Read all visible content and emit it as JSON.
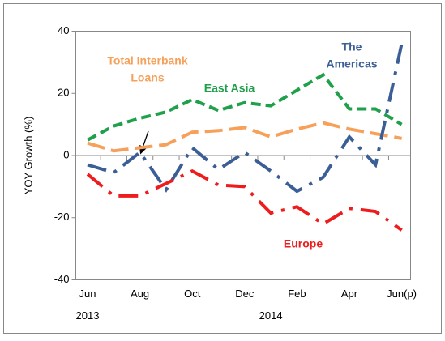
{
  "chart_data": {
    "type": "line",
    "y_label": "YOY Growth (%)",
    "categories": [
      "Jun",
      null,
      "Aug",
      null,
      "Oct",
      null,
      "Dec",
      null,
      "Feb",
      null,
      "Apr",
      null,
      "Jun(p)"
    ],
    "year_labels": [
      "2013",
      "2014"
    ],
    "ylim": [
      -40,
      40
    ],
    "yticks": [
      -40,
      -20,
      0,
      20,
      40
    ],
    "grid": false,
    "series": [
      {
        "name": "East Asia",
        "color": "#1fa04a",
        "values": [
          5,
          9.5,
          12,
          14,
          18,
          14.5,
          17,
          16,
          21,
          26,
          15,
          15,
          10
        ]
      },
      {
        "name": "Total Interbank Loans",
        "color": "#f6a05a",
        "values": [
          4,
          1.5,
          2.5,
          3.5,
          7.5,
          8,
          9,
          6,
          8.5,
          10.5,
          8.5,
          7,
          5.5
        ]
      },
      {
        "name": "The Americas",
        "color": "#3b5e96",
        "values": [
          -3,
          -5.5,
          1,
          -11,
          2.5,
          -4.5,
          1,
          -5,
          -11.5,
          -7,
          6,
          -3,
          36
        ]
      },
      {
        "name": "Europe",
        "color": "#ee1c1c",
        "values": [
          -6,
          -13,
          -13,
          -9,
          -5,
          -9.5,
          -10,
          -18.5,
          -16.5,
          -22,
          -17,
          -18,
          -24
        ]
      }
    ],
    "annotations": [
      {
        "lines": [
          "Total Interbank",
          "Loans"
        ],
        "series": 1
      },
      {
        "lines": [
          "East Asia"
        ],
        "series": 0
      },
      {
        "lines": [
          "The",
          "Americas"
        ],
        "series": 2
      },
      {
        "lines": [
          "Europe"
        ],
        "series": 3
      }
    ]
  }
}
